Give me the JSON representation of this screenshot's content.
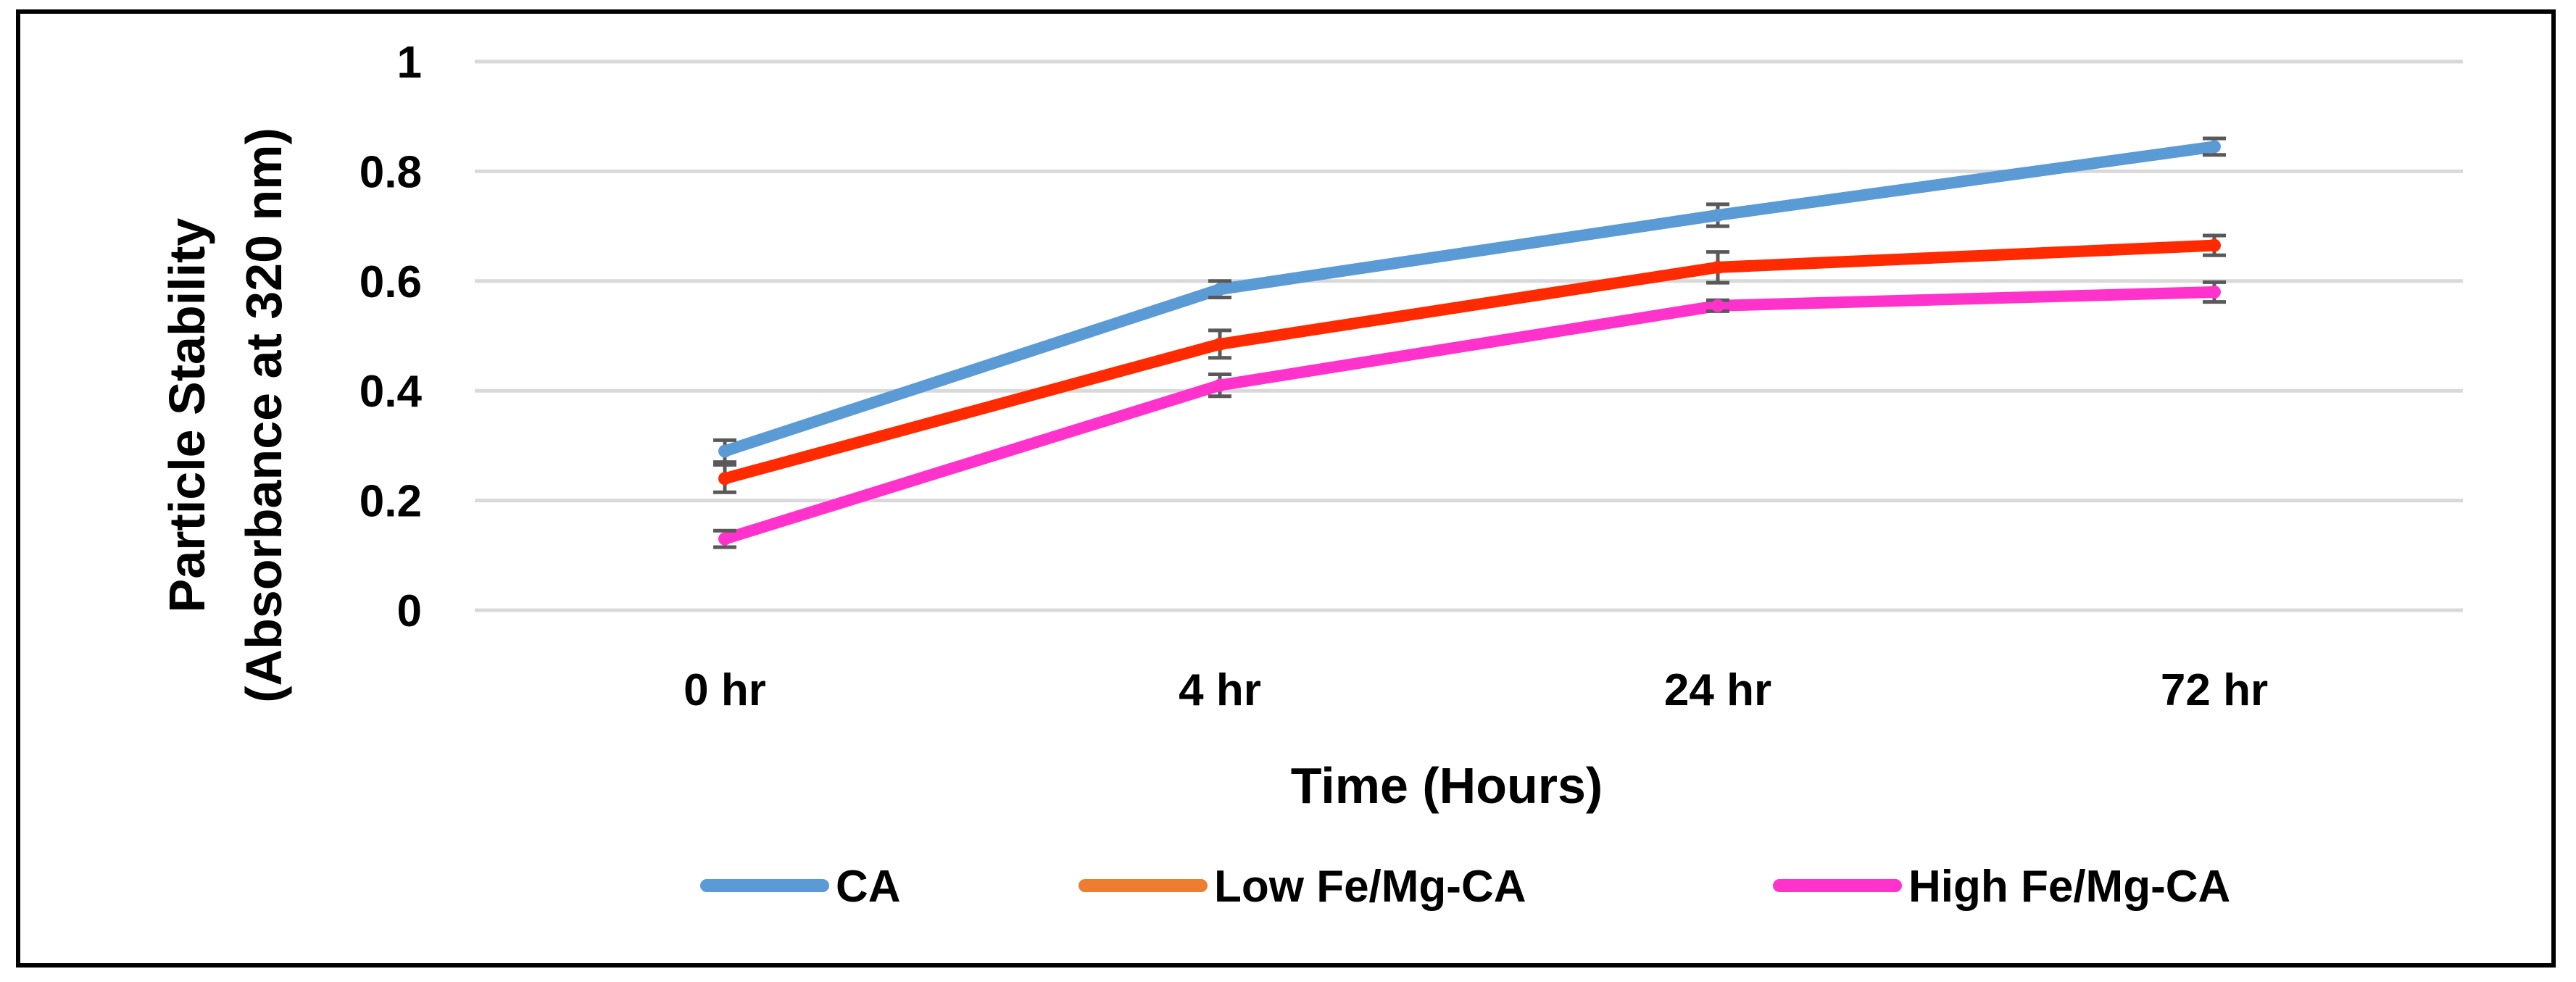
{
  "chart_data": {
    "type": "line",
    "title": "",
    "xlabel": "Time (Hours)",
    "ylabel_line1": "Particle Stability",
    "ylabel_line2": "(Absorbance at 320 nm)",
    "categories": [
      "0 hr",
      "4 hr",
      "24 hr",
      "72 hr"
    ],
    "ylim": [
      0,
      1
    ],
    "yticks": [
      0,
      0.2,
      0.4,
      0.6,
      0.8,
      1
    ],
    "ytick_labels": [
      "0",
      "0.2",
      "0.4",
      "0.6",
      "0.8",
      "1"
    ],
    "grid": true,
    "legend_position": "bottom",
    "series": [
      {
        "name": "CA",
        "color": "#5B9BD5",
        "values": [
          0.29,
          0.585,
          0.72,
          0.845
        ],
        "errors": [
          0.02,
          0.015,
          0.02,
          0.015
        ]
      },
      {
        "name": "Low Fe/Mg-CA",
        "color": "#ED7D31",
        "line_color": "#FF2A00",
        "values": [
          0.24,
          0.485,
          0.625,
          0.665
        ],
        "errors": [
          0.025,
          0.025,
          0.028,
          0.018
        ]
      },
      {
        "name": "High Fe/Mg-CA",
        "color": "#FF33CC",
        "values": [
          0.13,
          0.41,
          0.555,
          0.58
        ],
        "errors": [
          0.015,
          0.02,
          0.01,
          0.018
        ]
      }
    ]
  }
}
